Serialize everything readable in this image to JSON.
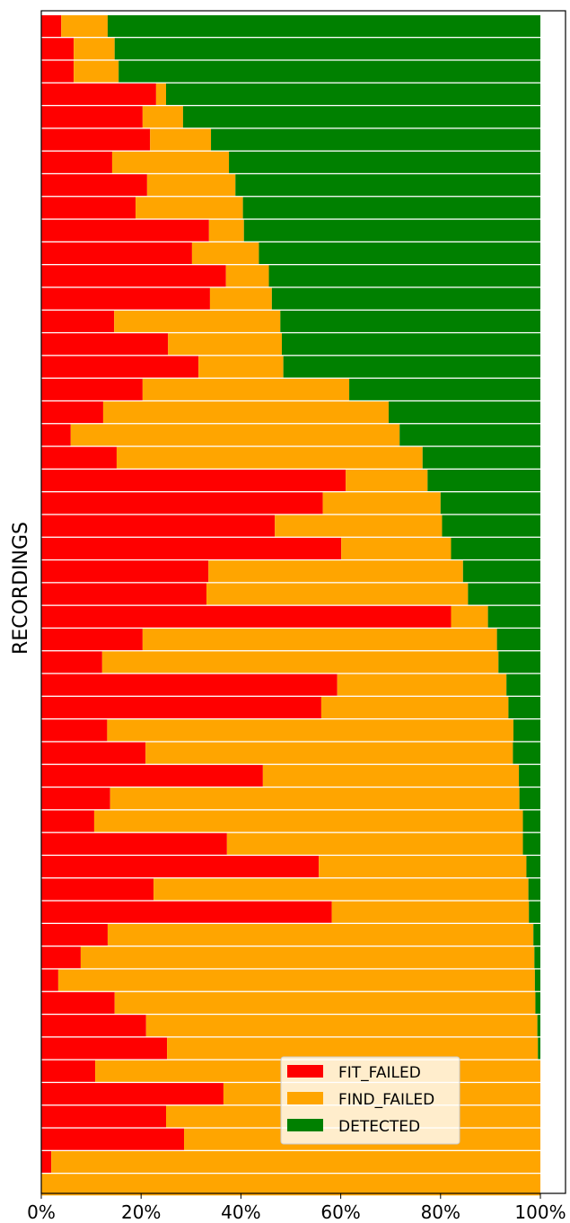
{
  "chart_data": {
    "type": "bar",
    "orientation": "horizontal",
    "stacked": true,
    "ylabel": "RECORDINGS",
    "xlabel": "",
    "xlim": [
      0,
      100
    ],
    "x_ticks": [
      "0%",
      "20%",
      "40%",
      "60%",
      "80%",
      "100%"
    ],
    "x_tick_values": [
      0,
      20,
      40,
      60,
      80,
      100
    ],
    "grid": false,
    "legend_position": "lower-right",
    "series": [
      {
        "name": "FIT_FAILED",
        "color": "#ff0000",
        "values": [
          4,
          6.5,
          6.5,
          23,
          20.3,
          21.8,
          14.2,
          21.2,
          18.9,
          33.6,
          30.2,
          37,
          33.8,
          14.6,
          25.4,
          31.5,
          20.3,
          12.4,
          5.9,
          15.1,
          61,
          56.4,
          46.8,
          60.1,
          33.5,
          33.1,
          82.1,
          20.3,
          12.2,
          59.3,
          56.1,
          13.2,
          20.9,
          44.4,
          13.8,
          10.6,
          37.2,
          55.6,
          22.5,
          58.2,
          13.3,
          7.9,
          3.4,
          14.7,
          21,
          25.2,
          10.8,
          36.5,
          25,
          28.6,
          2,
          0
        ]
      },
      {
        "name": "FIND_FAILED",
        "color": "#ffa500",
        "values": [
          9.3,
          8.2,
          9,
          2,
          8.1,
          12.2,
          23.4,
          17.7,
          21.5,
          7,
          13.4,
          8.6,
          12.4,
          33.3,
          22.8,
          17,
          41.4,
          57.2,
          65.9,
          61.3,
          16.4,
          23.6,
          33.5,
          22,
          51,
          52.4,
          7.4,
          71,
          79.4,
          33.9,
          37.5,
          81.4,
          73.6,
          51.3,
          82,
          85.9,
          59.3,
          41.6,
          75.1,
          39.5,
          85.3,
          90.9,
          95.5,
          84.3,
          78.4,
          74.3,
          89.2,
          63.5,
          75,
          71.4,
          98,
          100
        ]
      },
      {
        "name": "DETECTED",
        "color": "#008000",
        "values": [
          86.7,
          85.3,
          84.5,
          75,
          71.6,
          66,
          62.4,
          61.1,
          59.6,
          59.4,
          56.4,
          54.4,
          53.8,
          52.1,
          51.8,
          51.5,
          38.3,
          30.4,
          28.2,
          23.6,
          22.6,
          20,
          19.7,
          17.9,
          15.5,
          14.5,
          10.5,
          8.7,
          8.4,
          6.8,
          6.4,
          5.4,
          5.5,
          4.3,
          4.2,
          3.5,
          3.5,
          2.8,
          2.4,
          2.3,
          1.4,
          1.2,
          1.1,
          1,
          0.6,
          0.5,
          0,
          0,
          0,
          0,
          0,
          0
        ]
      }
    ]
  }
}
